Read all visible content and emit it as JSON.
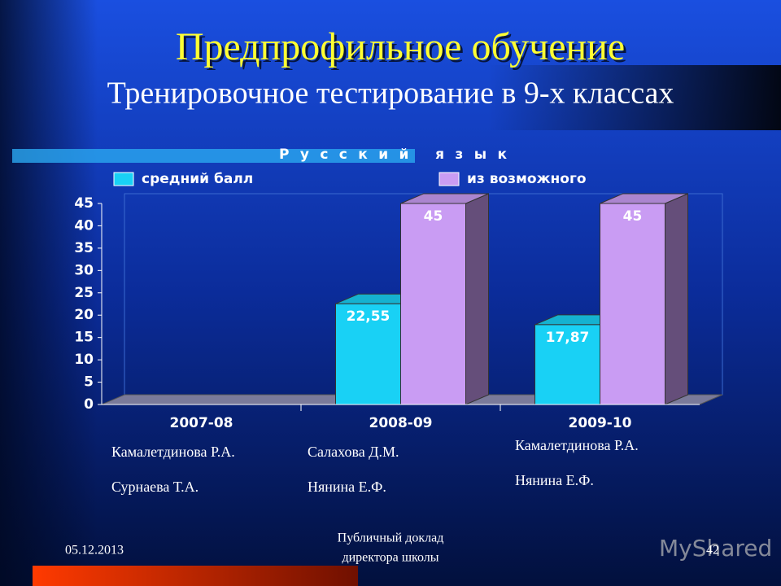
{
  "header": {
    "title": "Предпрофильное обучение",
    "subtitle": "Тренировочное тестирование в 9-х классах"
  },
  "chart_data": {
    "type": "bar",
    "title": "Русский язык",
    "categories": [
      "2007-08",
      "2008-09",
      "2009-10"
    ],
    "series": [
      {
        "name": "средний балл",
        "color": "#19d1f5",
        "values": [
          null,
          22.55,
          17.87
        ],
        "value_labels": [
          null,
          "22,55",
          "17,87"
        ]
      },
      {
        "name": "из возможного",
        "color": "#c99cf3",
        "values": [
          null,
          45,
          45
        ]
      }
    ],
    "ylim": [
      0,
      45
    ],
    "yticks": [
      0,
      5,
      10,
      15,
      20,
      25,
      30,
      35,
      40,
      45
    ],
    "grid": false
  },
  "notes": [
    [
      "Камалетдинова Р.А.",
      "Сурнаева Т.А."
    ],
    [
      "Салахова Д.М.",
      "Нянина Е.Ф."
    ],
    [
      "Камалетдинова Р.А.",
      "Нянина Е.Ф."
    ]
  ],
  "footer": {
    "date": "05.12.2013",
    "text": [
      "Публичный доклад",
      "директора школы"
    ],
    "page": "42",
    "watermark": "MyShared"
  }
}
